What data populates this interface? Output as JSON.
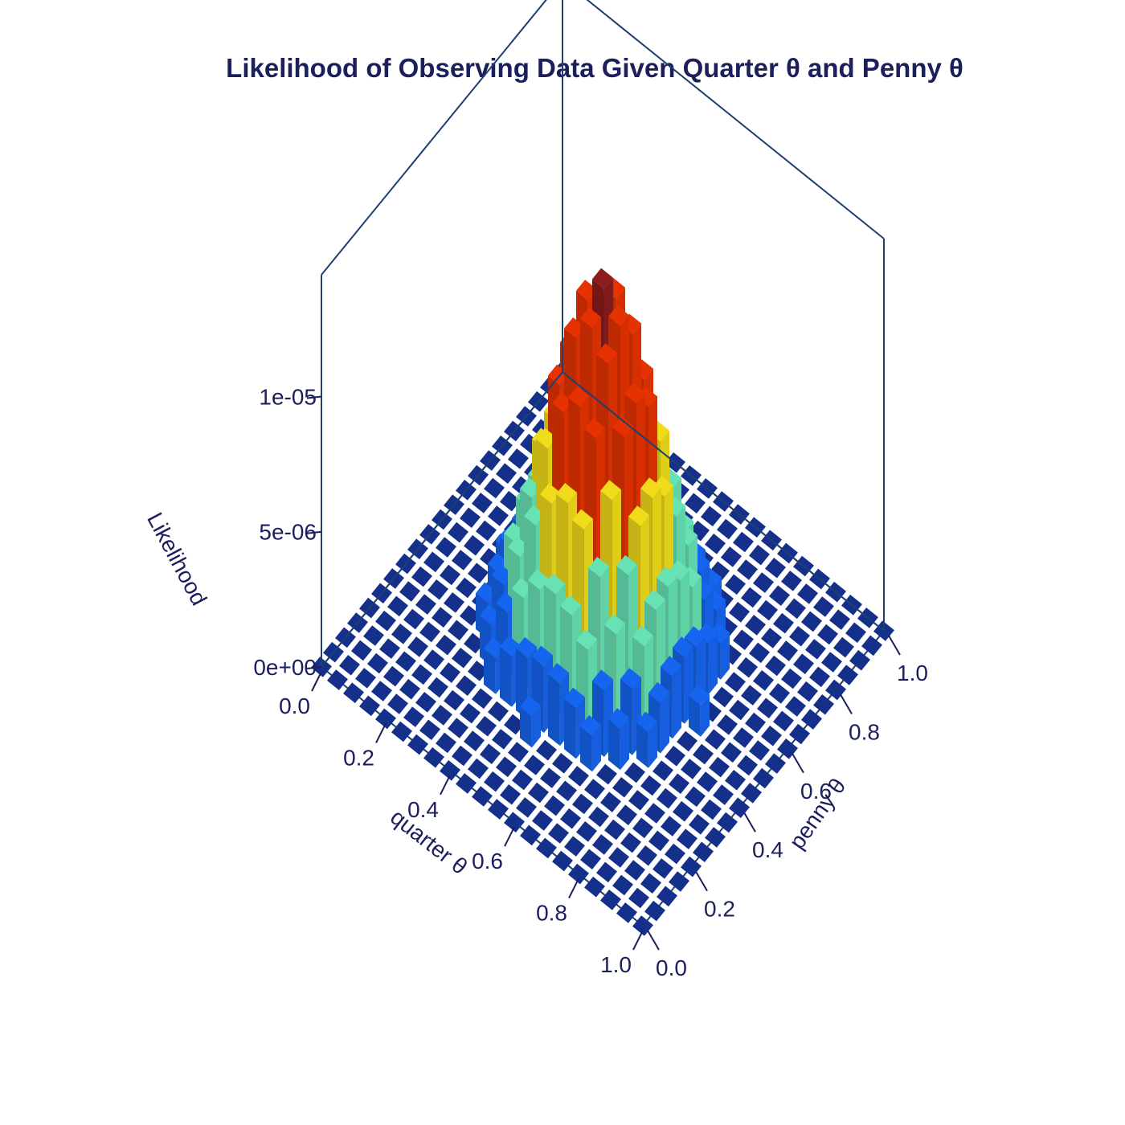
{
  "chart_data": {
    "type": "bar3d",
    "title": "Likelihood of Observing Data Given Quarter θ and Penny θ",
    "xlabel": "quarter θ",
    "ylabel": "penny θ",
    "zlabel": "Likelihood",
    "x_ticks": [
      "0.0",
      "0.2",
      "0.4",
      "0.6",
      "0.8",
      "1.0"
    ],
    "y_ticks": [
      "0.0",
      "0.2",
      "0.4",
      "0.6",
      "0.8",
      "1.0"
    ],
    "z_ticks": [
      {
        "label": "0e+00",
        "value": 0
      },
      {
        "label": "5e-06",
        "value": 5e-06
      },
      {
        "label": "1e-05",
        "value": 1e-05
      }
    ],
    "xlim": [
      0,
      1
    ],
    "ylim": [
      0,
      1
    ],
    "zlim": [
      0,
      1.45e-05
    ],
    "grid_bins": 21,
    "peak": {
      "quarter_theta": 0.5,
      "penny_theta": 0.5,
      "likelihood": 1.37e-05
    },
    "colors": {
      "base": "#15308a",
      "levels": [
        "#1565f0",
        "#66e2b5",
        "#f0dc1a",
        "#f39a20",
        "#e63200",
        "#8b1c1c"
      ],
      "text": "#1b1f5c",
      "box": "#1f3f6f"
    }
  }
}
